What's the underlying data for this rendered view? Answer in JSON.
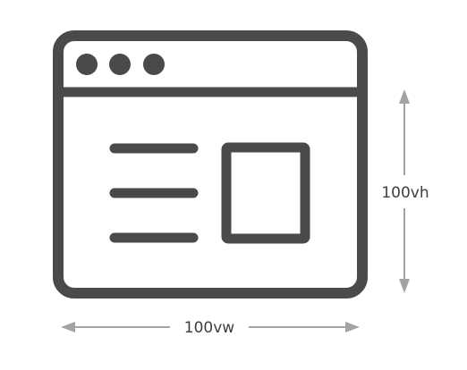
{
  "diagram": {
    "labels": {
      "width": "100vw",
      "height": "100vh"
    },
    "colors": {
      "window_stroke": "#4a4a4a",
      "arrow": "#a3a3a3",
      "label": "#3e3e3e"
    },
    "icons": {
      "window": "browser-window-icon",
      "dots": "window-control-dots-icon",
      "lines": "text-lines-icon",
      "image": "image-placeholder-icon"
    }
  }
}
